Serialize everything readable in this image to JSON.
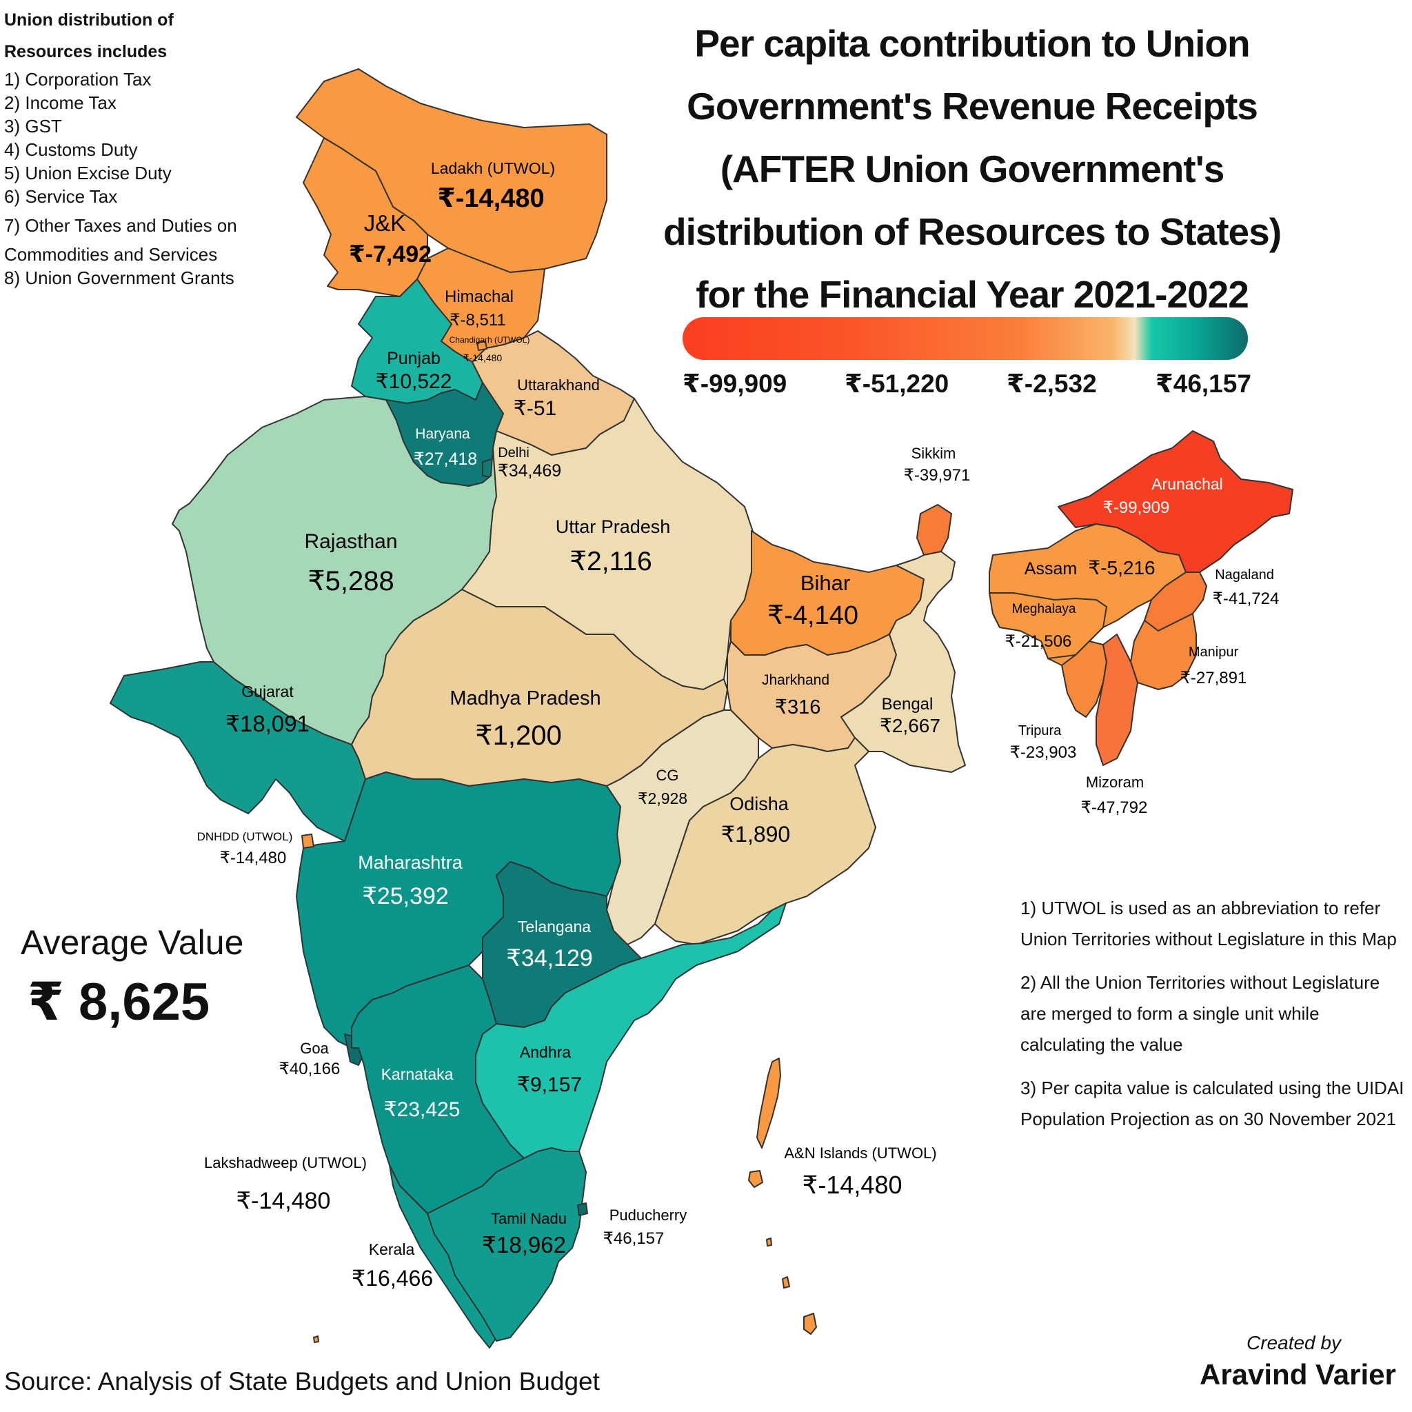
{
  "title": {
    "lines": [
      "Per capita contribution to Union",
      "Government's Revenue Receipts",
      "(AFTER Union Government's",
      "distribution of Resources to States)",
      "for the Financial Year 2021-2022"
    ]
  },
  "legend": {
    "min_color": "#fb3e22",
    "max_color": "#0d6b6a",
    "ticks": [
      "₹-99,909",
      "₹-51,220",
      "₹-2,532",
      "₹46,157"
    ]
  },
  "includes": {
    "heading_line1": "Union distribution of",
    "heading_line2": "Resources includes",
    "items": [
      "1) Corporation Tax",
      "2) Income Tax",
      "3) GST",
      "4) Customs Duty",
      "5) Union Excise Duty",
      "6) Service Tax",
      "7) Other Taxes and Duties on",
      "Commodities and Services",
      "8) Union Government Grants"
    ]
  },
  "average": {
    "label": "Average Value",
    "value": "₹ 8,625"
  },
  "notes": [
    "1) UTWOL is used as an abbreviation to refer Union Territories without Legislature in this Map",
    "2) All the Union Territories without Legislature are merged to form a single unit while calculating the value",
    "3) Per capita value is calculated using the UIDAI Population Projection as on 30 November 2021"
  ],
  "source": "Source: Analysis of State Budgets and Union Budget",
  "credit": {
    "by": "Created by",
    "name": "Aravind Varier"
  },
  "regions": [
    {
      "id": "ladakh",
      "name": "Ladakh (UTWOL)",
      "value": "₹-14,480",
      "color": "#f99a43"
    },
    {
      "id": "jk",
      "name": "J&K",
      "value": "₹-7,492",
      "color": "#f99a43"
    },
    {
      "id": "himachal",
      "name": "Himachal",
      "value": "₹-8,511",
      "color": "#f99a43"
    },
    {
      "id": "chandigarh",
      "name": "Chandigarh (UTWOL)",
      "value": "₹-14,480",
      "color": "#f99a43"
    },
    {
      "id": "punjab",
      "name": "Punjab",
      "value": "₹10,522",
      "color": "#19b5a2"
    },
    {
      "id": "uttarakhand",
      "name": "Uttarakhand",
      "value": "₹-51",
      "color": "#f2c68f"
    },
    {
      "id": "haryana",
      "name": "Haryana",
      "value": "₹27,418",
      "color": "#0f7b77"
    },
    {
      "id": "delhi",
      "name": "Delhi",
      "value": "₹34,469",
      "color": "#0f7b77"
    },
    {
      "id": "rajasthan",
      "name": "Rajasthan",
      "value": "₹5,288",
      "color": "#a4d8b7"
    },
    {
      "id": "up",
      "name": "Uttar Pradesh",
      "value": "₹2,116",
      "color": "#eedcb2"
    },
    {
      "id": "bihar",
      "name": "Bihar",
      "value": "₹-4,140",
      "color": "#f99a43"
    },
    {
      "id": "sikkim",
      "name": "Sikkim",
      "value": "₹-39,971",
      "color": "#f77d37"
    },
    {
      "id": "arunachal",
      "name": "Arunachal",
      "value": "₹-99,909",
      "color": "#f53e22"
    },
    {
      "id": "assam",
      "name": "Assam",
      "value": "₹-5,216",
      "color": "#f99a43"
    },
    {
      "id": "nagaland",
      "name": "Nagaland",
      "value": "₹-41,724",
      "color": "#f77d37"
    },
    {
      "id": "meghalaya",
      "name": "Meghalaya",
      "value": "₹-21,506",
      "color": "#f99a43"
    },
    {
      "id": "manipur",
      "name": "Manipur",
      "value": "₹-27,891",
      "color": "#f7893b"
    },
    {
      "id": "tripura",
      "name": "Tripura",
      "value": "₹-23,903",
      "color": "#f7893b"
    },
    {
      "id": "mizoram",
      "name": "Mizoram",
      "value": "₹-47,792",
      "color": "#f7733a"
    },
    {
      "id": "gujarat",
      "name": "Gujarat",
      "value": "₹18,091",
      "color": "#139c8e"
    },
    {
      "id": "mp",
      "name": "Madhya Pradesh",
      "value": "₹1,200",
      "color": "#edcf9b"
    },
    {
      "id": "jharkhand",
      "name": "Jharkhand",
      "value": "₹316",
      "color": "#f2c68f"
    },
    {
      "id": "bengal",
      "name": "Bengal",
      "value": "₹2,667",
      "color": "#eedcb2"
    },
    {
      "id": "cg",
      "name": "CG",
      "value": "₹2,928",
      "color": "#ebe0bb"
    },
    {
      "id": "odisha",
      "name": "Odisha",
      "value": "₹1,890",
      "color": "#edd5a3"
    },
    {
      "id": "dnhdd",
      "name": "DNHDD (UTWOL)",
      "value": "₹-14,480",
      "color": "#f99a43"
    },
    {
      "id": "maharashtra",
      "name": "Maharashtra",
      "value": "₹25,392",
      "color": "#0b958a"
    },
    {
      "id": "telangana",
      "name": "Telangana",
      "value": "₹34,129",
      "color": "#0f7b77"
    },
    {
      "id": "goa",
      "name": "Goa",
      "value": "₹40,166",
      "color": "#0f6e6c"
    },
    {
      "id": "karnataka",
      "name": "Karnataka",
      "value": "₹23,425",
      "color": "#0b958a"
    },
    {
      "id": "andhra",
      "name": "Andhra",
      "value": "₹9,157",
      "color": "#1dc2ac"
    },
    {
      "id": "lakshadweep",
      "name": "Lakshadweep (UTWOL)",
      "value": "₹-14,480",
      "color": "#f99a43"
    },
    {
      "id": "an",
      "name": "A&N Islands (UTWOL)",
      "value": "₹-14,480",
      "color": "#f99a43"
    },
    {
      "id": "tn",
      "name": "Tamil Nadu",
      "value": "₹18,962",
      "color": "#109c8f"
    },
    {
      "id": "puducherry",
      "name": "Puducherry",
      "value": "₹46,157",
      "color": "#0d6b6a"
    },
    {
      "id": "kerala",
      "name": "Kerala",
      "value": "₹16,466",
      "color": "#109c8f"
    }
  ]
}
